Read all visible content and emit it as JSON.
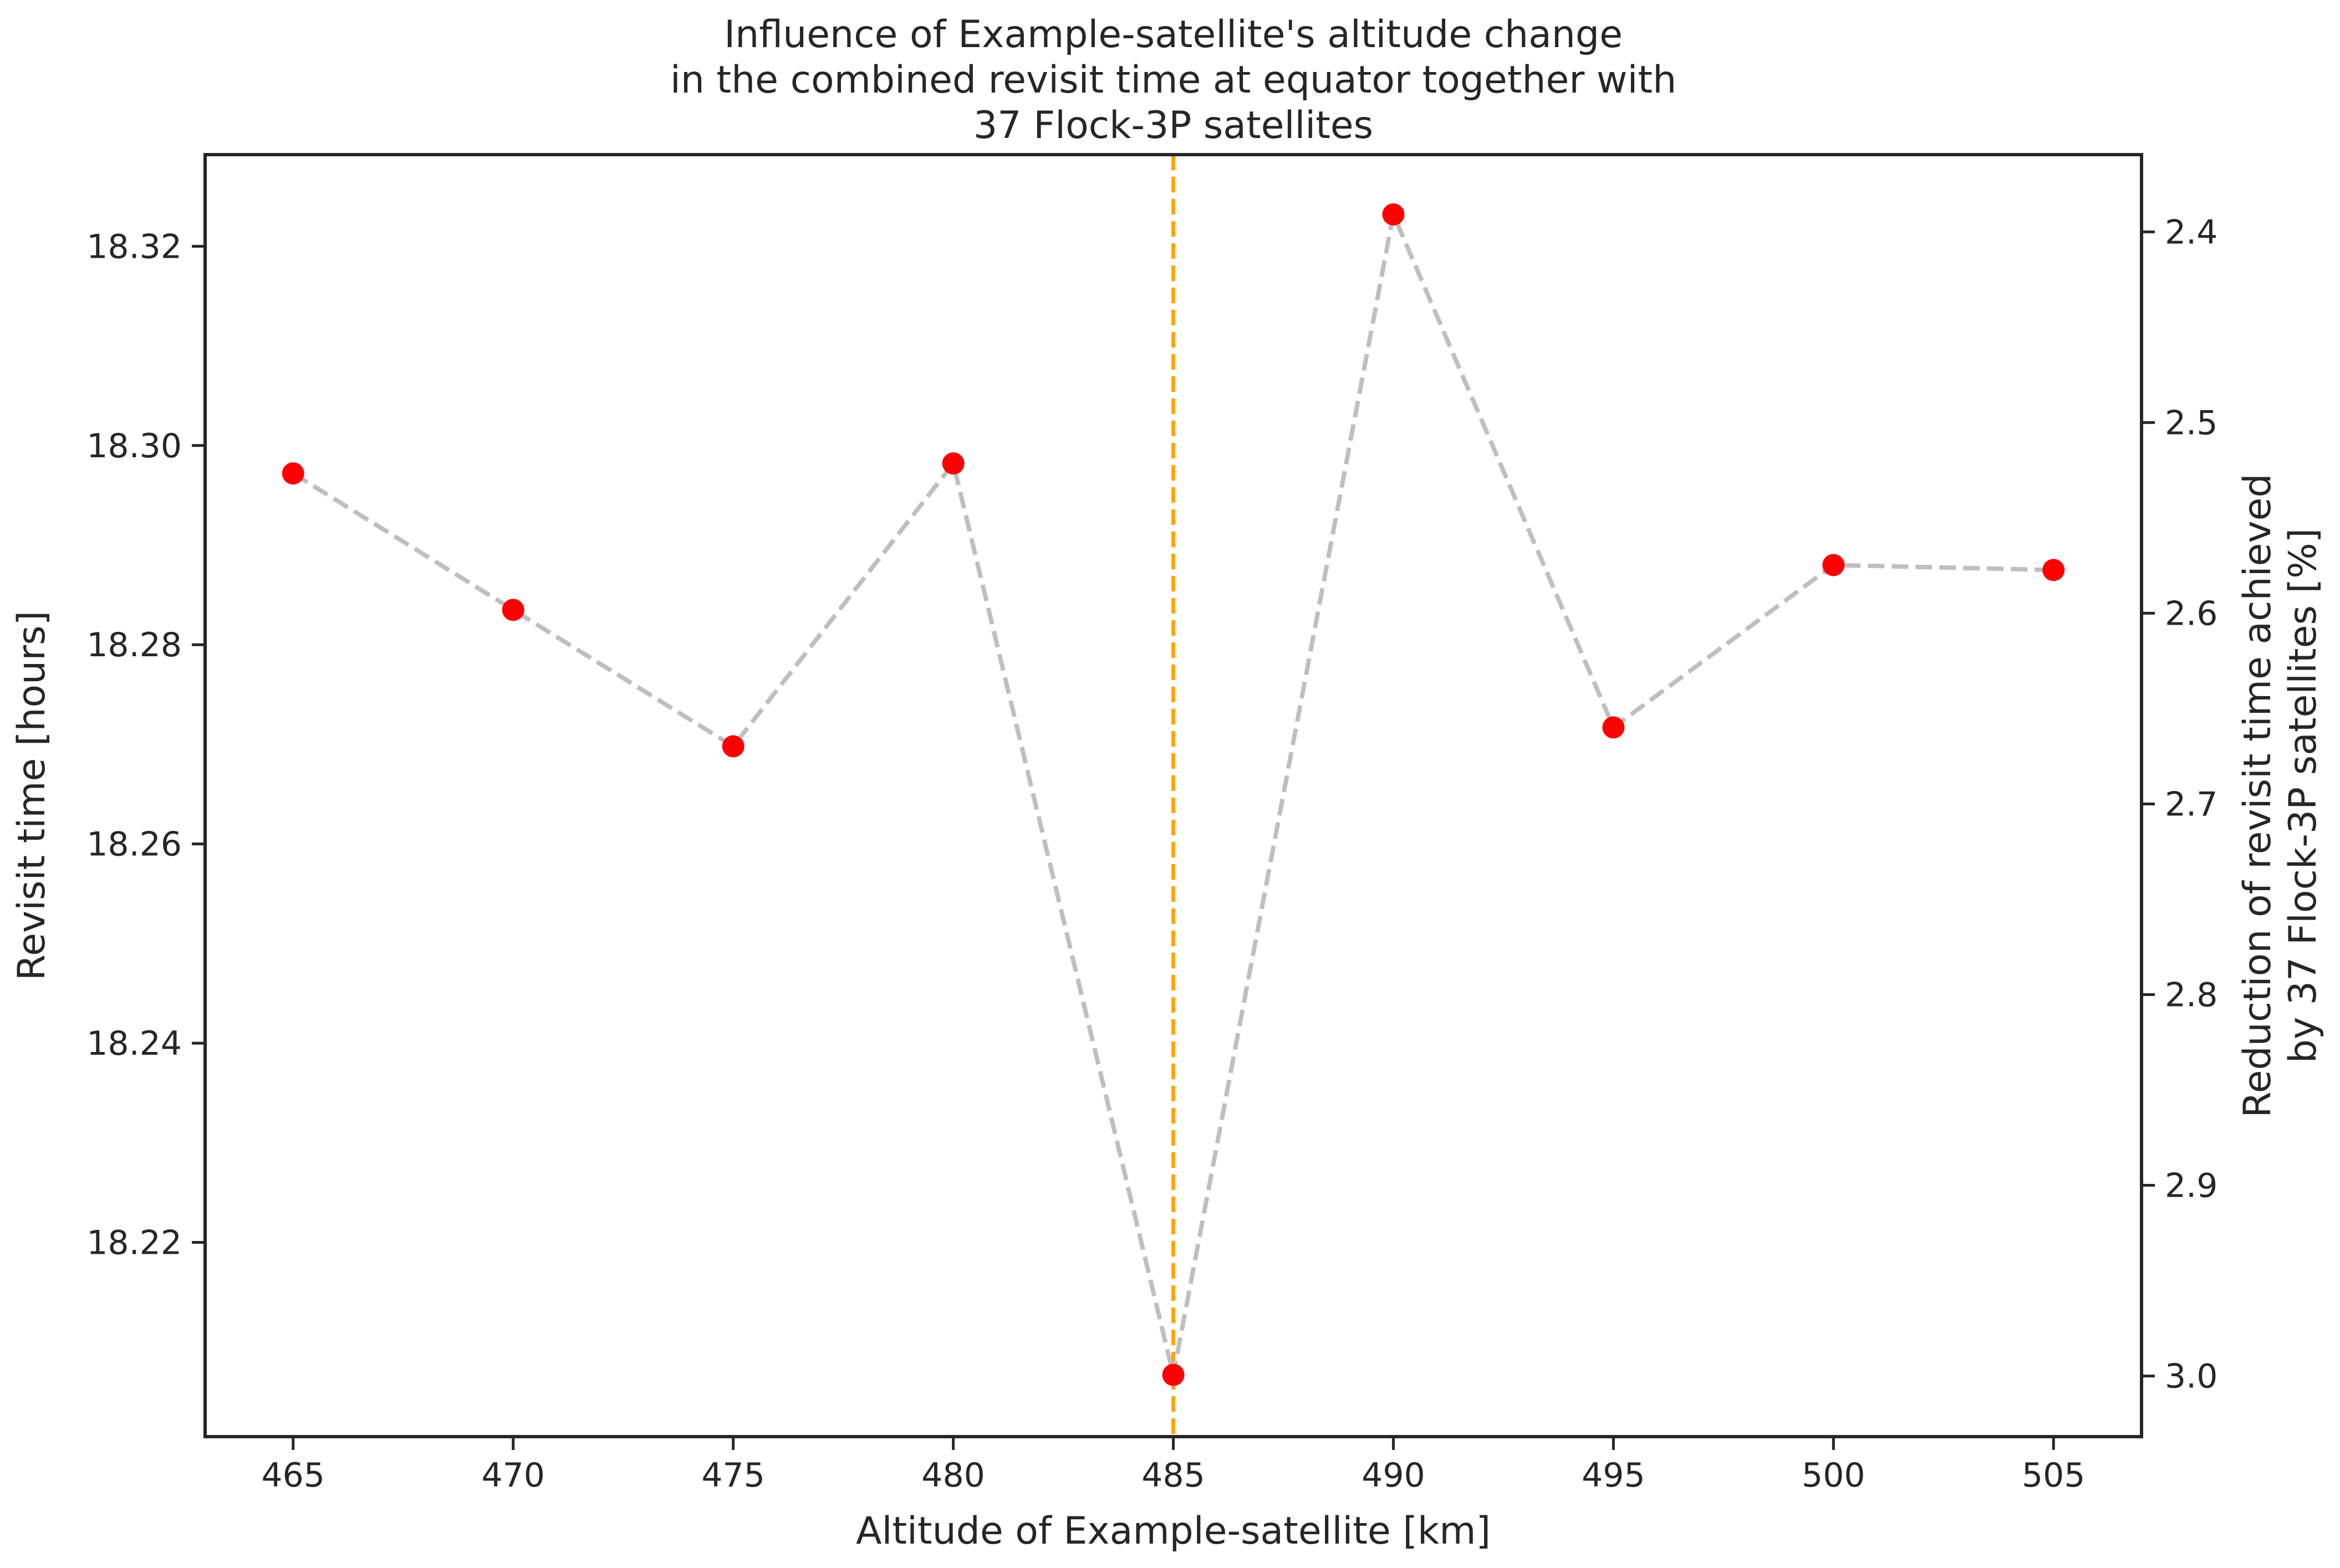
{
  "chart_data": {
    "type": "line",
    "title": [
      "Influence of Example-satellite's altitude change",
      "in the combined revisit time at equator together with",
      "37 Flock-3P satellites"
    ],
    "xlabel": "Altitude of Example-satellite [km]",
    "ylabel": "Revisit time [hours]",
    "ylabel_right": [
      "Reduction of revisit time achieved",
      "by 37 Flock-3P satellites [%]"
    ],
    "xlim": [
      463,
      507
    ],
    "ylim": [
      18.2005,
      18.3292
    ],
    "ylim_right": [
      3.0318,
      2.3595
    ],
    "x_ticks": [
      "465",
      "470",
      "475",
      "480",
      "485",
      "490",
      "495",
      "500",
      "505"
    ],
    "y_ticks": [
      "18.22",
      "18.24",
      "18.26",
      "18.28",
      "18.30",
      "18.32"
    ],
    "y_ticks_right": [
      "2.4",
      "2.5",
      "2.6",
      "2.7",
      "2.8",
      "2.9",
      "3.0"
    ],
    "grid": false,
    "marker_line_x": 485,
    "series": [
      {
        "x": [
          465,
          470,
          475,
          480,
          485,
          490,
          495,
          500,
          505
        ],
        "values": [
          18.2972,
          18.2835,
          18.2698,
          18.2982,
          18.2067,
          18.3232,
          18.2717,
          18.288,
          18.2875
        ]
      }
    ],
    "colors": {
      "points": "#ff0000",
      "line": "#bfbfbf",
      "vline": "#ffa500",
      "frame": "#262626",
      "text": "#262626"
    }
  }
}
